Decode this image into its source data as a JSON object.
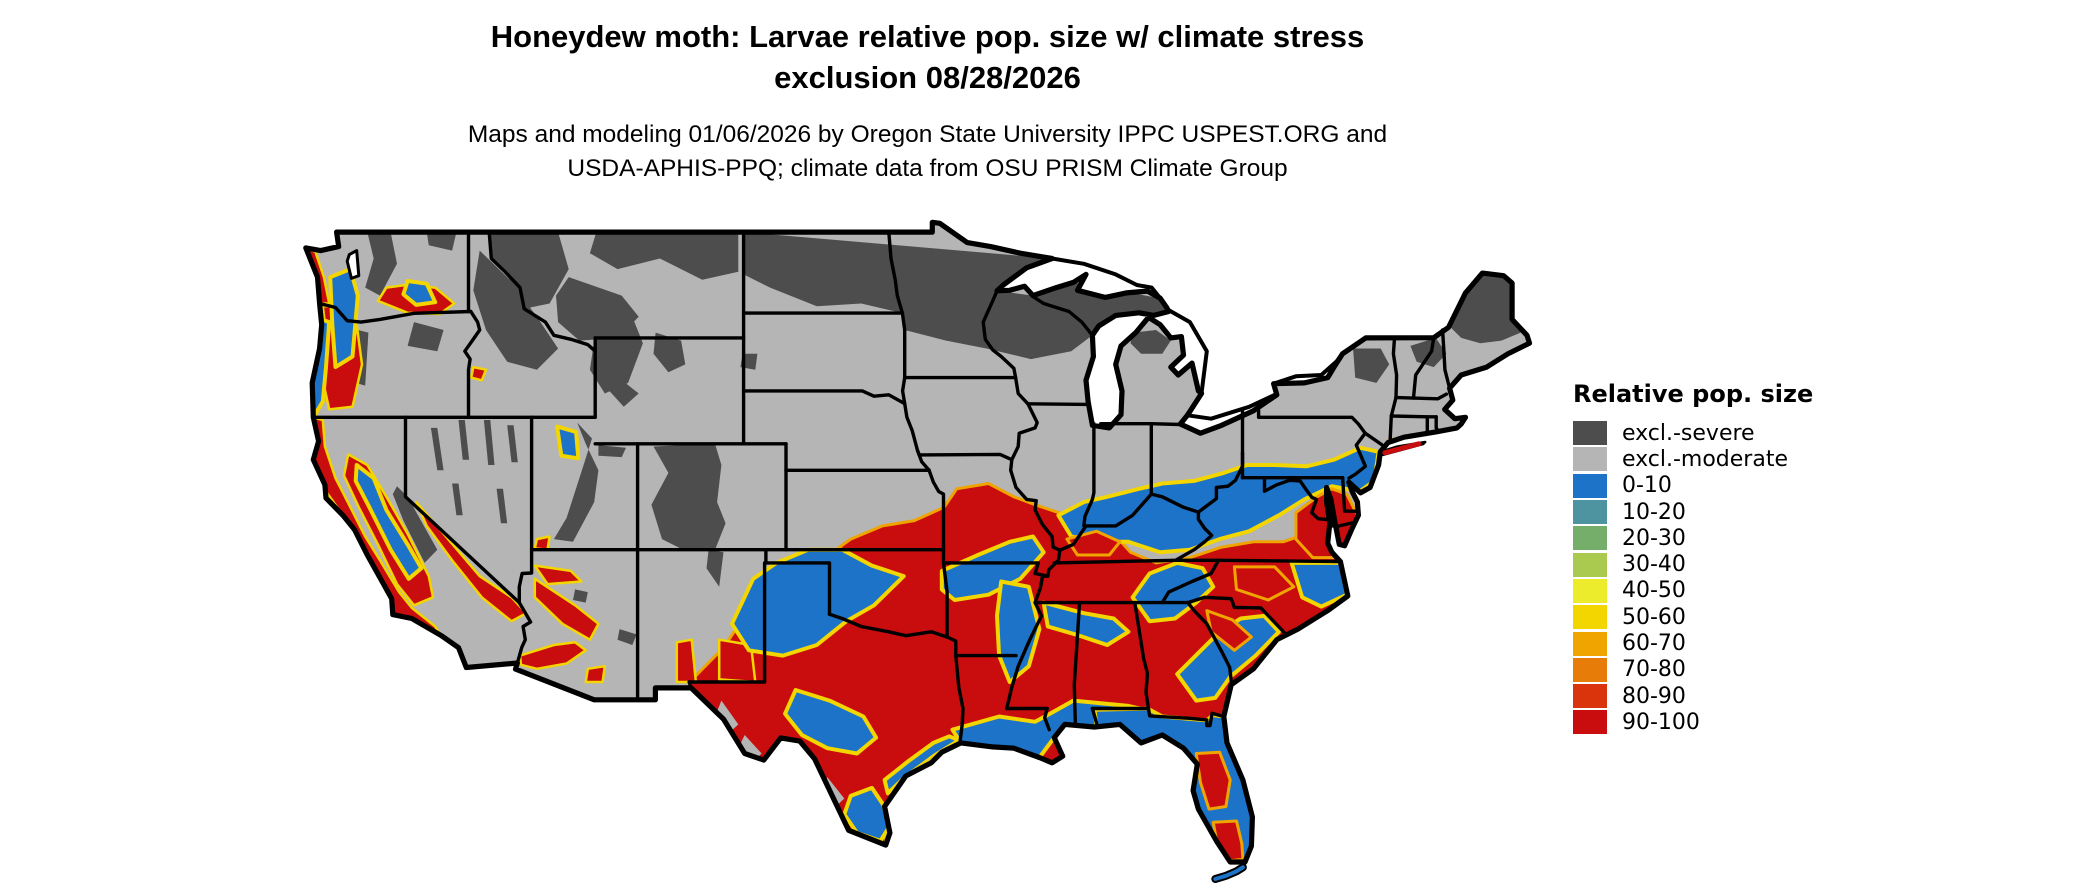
{
  "title": {
    "line1": "Honeydew moth: Larvae relative pop. size w/ climate stress",
    "line2": "exclusion 08/28/2026"
  },
  "subtitle": {
    "line1": "Maps and modeling 01/06/2026 by Oregon State University IPPC USPEST.ORG and",
    "line2": "USDA-APHIS-PPQ; climate data from OSU PRISM Climate Group"
  },
  "legend": {
    "title": "Relative pop. size",
    "items": [
      {
        "label": "excl.-severe",
        "color": "#4d4d4d"
      },
      {
        "label": "excl.-moderate",
        "color": "#b5b5b5"
      },
      {
        "label": "0-10",
        "color": "#1c73c8"
      },
      {
        "label": "10-20",
        "color": "#4e93a0"
      },
      {
        "label": "20-30",
        "color": "#74ae6a"
      },
      {
        "label": "30-40",
        "color": "#aac94f"
      },
      {
        "label": "40-50",
        "color": "#ecec2d"
      },
      {
        "label": "50-60",
        "color": "#f3d500"
      },
      {
        "label": "60-70",
        "color": "#f0a400"
      },
      {
        "label": "70-80",
        "color": "#e87c08"
      },
      {
        "label": "80-90",
        "color": "#da340c"
      },
      {
        "label": "90-100",
        "color": "#c90d0e"
      }
    ]
  },
  "map": {
    "region": "Contiguous United States",
    "kind": "raster choropleth with state borders",
    "background": "#ffffff",
    "border_color": "#000000",
    "base_fill_label": "excl.-moderate"
  }
}
